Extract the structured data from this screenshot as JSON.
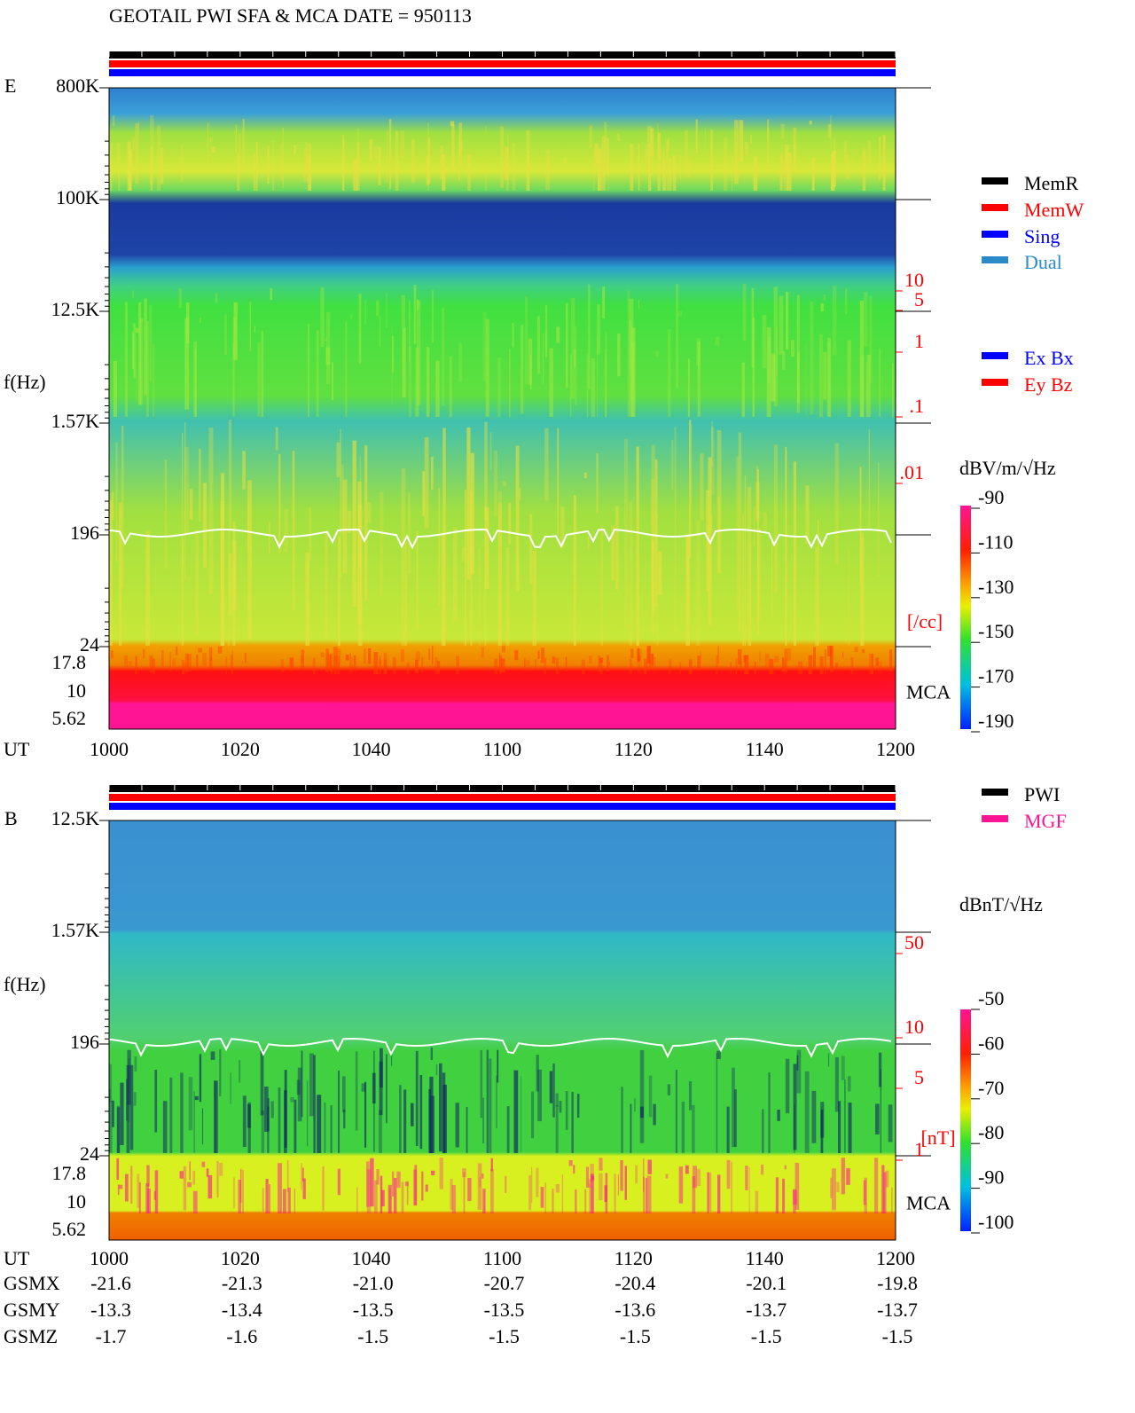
{
  "title": "GEOTAIL  PWI SFA & MCA  DATE = 950113",
  "panels": [
    {
      "label": "E",
      "axis_label": "f(Hz)",
      "freq_ticks": [
        "800K",
        "100K",
        "12.5K",
        "1.57K",
        "196",
        "24"
      ],
      "mca_ticks": [
        "17.8",
        "10",
        "5.62"
      ],
      "mca_label": "MCA",
      "time_label": "UT",
      "time_ticks": [
        "1000",
        "1020",
        "1040",
        "1100",
        "1120",
        "1140",
        "1200"
      ],
      "right_scale": [
        "10",
        "5",
        "1",
        ".1",
        ".01"
      ],
      "right_unit": "[/cc]",
      "colorbar": {
        "label": "dBV/m/√Hz",
        "lim": [
          -190,
          -90
        ],
        "ticks": [
          -90,
          -110,
          -130,
          -150,
          -170,
          -190
        ]
      }
    },
    {
      "label": "B",
      "axis_label": "f(Hz)",
      "freq_ticks": [
        "12.5K",
        "1.57K",
        "196",
        "24"
      ],
      "mca_ticks": [
        "17.8",
        "10",
        "5.62"
      ],
      "mca_label": "MCA",
      "time_label": "UT",
      "time_ticks": [
        "1000",
        "1020",
        "1040",
        "1100",
        "1120",
        "1140",
        "1200"
      ],
      "right_scale": [
        "50",
        "10",
        "5",
        "1"
      ],
      "right_unit": "[nT]",
      "colorbar": {
        "label": "dBnT/√Hz",
        "lim": [
          -100,
          -50
        ],
        "ticks": [
          -50,
          -60,
          -70,
          -80,
          -90,
          -100
        ]
      }
    }
  ],
  "legends": {
    "status": [
      {
        "name": "MemR",
        "color": "#000000"
      },
      {
        "name": "MemW",
        "color": "#ff0000"
      },
      {
        "name": "Sing",
        "color": "#0000ff"
      },
      {
        "name": "Dual",
        "color": "#2a8ac8"
      }
    ],
    "components": [
      {
        "name": "Ex Bx",
        "color": "#0000ff"
      },
      {
        "name": "Ey Bz",
        "color": "#ff0000"
      }
    ],
    "sources": [
      {
        "name": "PWI",
        "color": "#000000"
      },
      {
        "name": "MGF",
        "color": "#ff1493"
      }
    ]
  },
  "orbit": {
    "rows": [
      [
        "GSMX",
        "-21.6",
        "-21.3",
        "-21.0",
        "-20.7",
        "-20.4",
        "-20.1",
        "-19.8"
      ],
      [
        "GSMY",
        "-13.3",
        "-13.4",
        "-13.5",
        "-13.5",
        "-13.6",
        "-13.7",
        "-13.7"
      ],
      [
        "GSMZ",
        "-1.7",
        "-1.6",
        "-1.5",
        "-1.5",
        "-1.5",
        "-1.5",
        "-1.5"
      ]
    ]
  }
}
